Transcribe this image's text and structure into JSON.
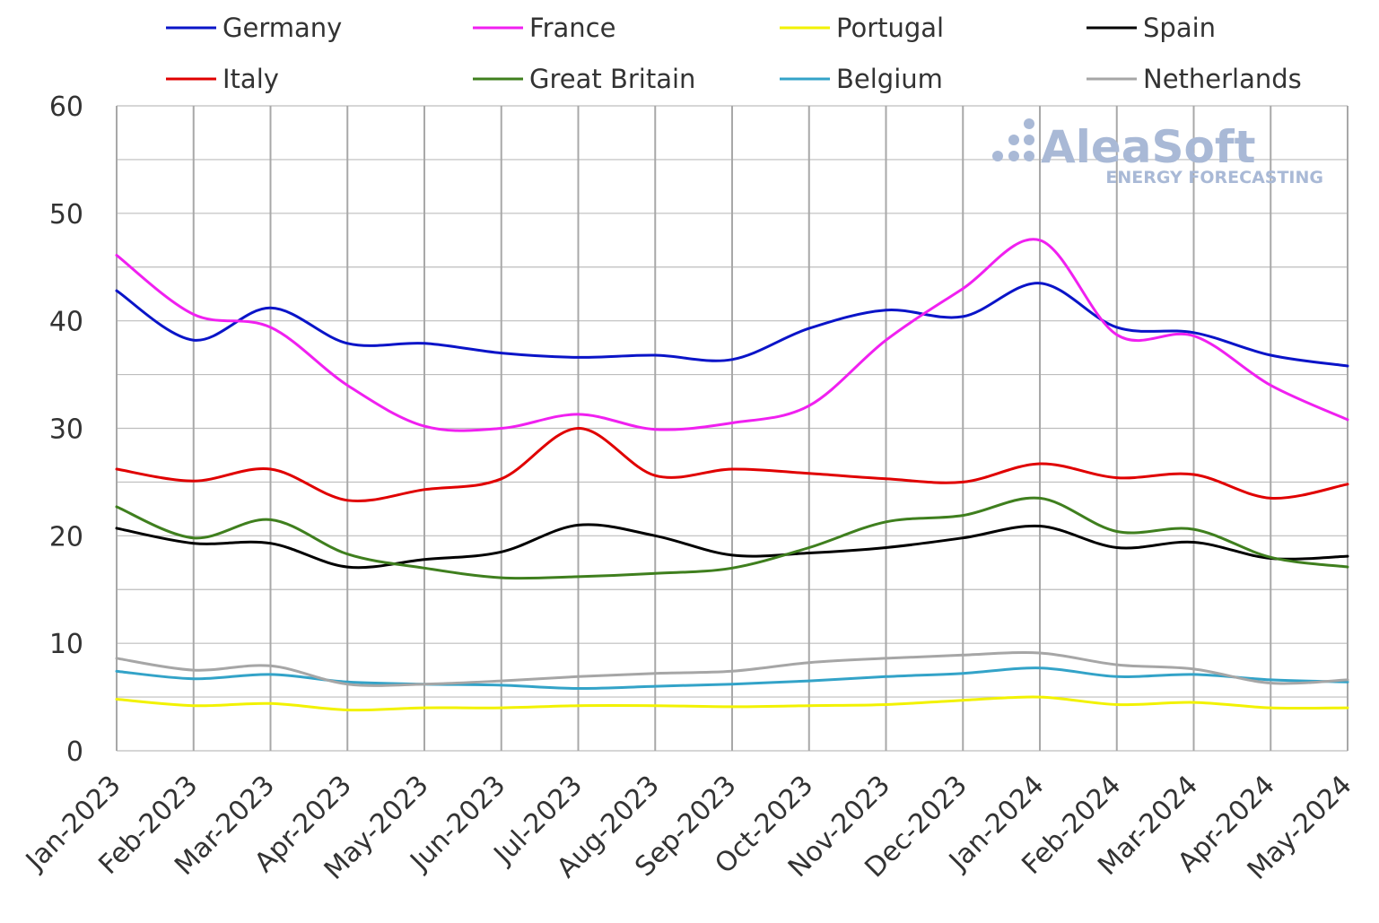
{
  "chart_data": {
    "type": "line",
    "title": "",
    "xlabel": "",
    "ylabel": "",
    "ylim": [
      0,
      60
    ],
    "yticks": [
      0,
      10,
      20,
      30,
      40,
      50,
      60
    ],
    "categories": [
      "Jan-2023",
      "Feb-2023",
      "Mar-2023",
      "Apr-2023",
      "May-2023",
      "Jun-2023",
      "Jul-2023",
      "Aug-2023",
      "Sep-2023",
      "Oct-2023",
      "Nov-2023",
      "Dec-2023",
      "Jan-2024",
      "Feb-2024",
      "Mar-2024",
      "Apr-2024",
      "May-2024"
    ],
    "legend_position": "top",
    "series": [
      {
        "name": "Germany",
        "color": "#0a14c8",
        "values": [
          42.8,
          38.2,
          41.2,
          37.9,
          37.9,
          37.0,
          36.6,
          36.8,
          36.4,
          39.3,
          41.0,
          40.4,
          43.5,
          39.4,
          38.9,
          36.8,
          35.8
        ]
      },
      {
        "name": "France",
        "color": "#f020f0",
        "values": [
          46.1,
          40.6,
          39.4,
          34.0,
          30.2,
          30.0,
          31.3,
          29.9,
          30.5,
          32.1,
          38.2,
          43.0,
          47.5,
          38.7,
          38.6,
          34.0,
          30.8
        ]
      },
      {
        "name": "Portugal",
        "color": "#f2f200",
        "values": [
          4.8,
          4.2,
          4.4,
          3.8,
          4.0,
          4.0,
          4.2,
          4.2,
          4.1,
          4.2,
          4.3,
          4.7,
          5.0,
          4.3,
          4.5,
          4.0,
          4.0
        ]
      },
      {
        "name": "Spain",
        "color": "#000000",
        "values": [
          20.7,
          19.3,
          19.3,
          17.1,
          17.8,
          18.5,
          21.0,
          20.0,
          18.2,
          18.4,
          18.9,
          19.8,
          20.9,
          18.9,
          19.4,
          17.9,
          18.1
        ]
      },
      {
        "name": "Italy",
        "color": "#e00000",
        "values": [
          26.2,
          25.1,
          26.2,
          23.3,
          24.3,
          25.3,
          30.0,
          25.6,
          26.2,
          25.8,
          25.3,
          25.0,
          26.7,
          25.4,
          25.7,
          23.5,
          24.8
        ]
      },
      {
        "name": "Great Britain",
        "color": "#3f7f1e",
        "values": [
          22.7,
          19.8,
          21.5,
          18.3,
          17.0,
          16.1,
          16.2,
          16.5,
          17.0,
          18.9,
          21.3,
          21.9,
          23.5,
          20.4,
          20.6,
          18.0,
          17.1
        ]
      },
      {
        "name": "Belgium",
        "color": "#33a3c8",
        "values": [
          7.4,
          6.7,
          7.1,
          6.4,
          6.2,
          6.1,
          5.8,
          6.0,
          6.2,
          6.5,
          6.9,
          7.2,
          7.7,
          6.9,
          7.1,
          6.6,
          6.4
        ]
      },
      {
        "name": "Netherlands",
        "color": "#a6a6a6",
        "values": [
          8.6,
          7.5,
          7.9,
          6.2,
          6.2,
          6.5,
          6.9,
          7.2,
          7.4,
          8.2,
          8.6,
          8.9,
          9.1,
          8.0,
          7.6,
          6.3,
          6.6
        ]
      }
    ]
  },
  "watermark": {
    "name": "AleaSoft",
    "tagline": "ENERGY FORECASTING"
  }
}
